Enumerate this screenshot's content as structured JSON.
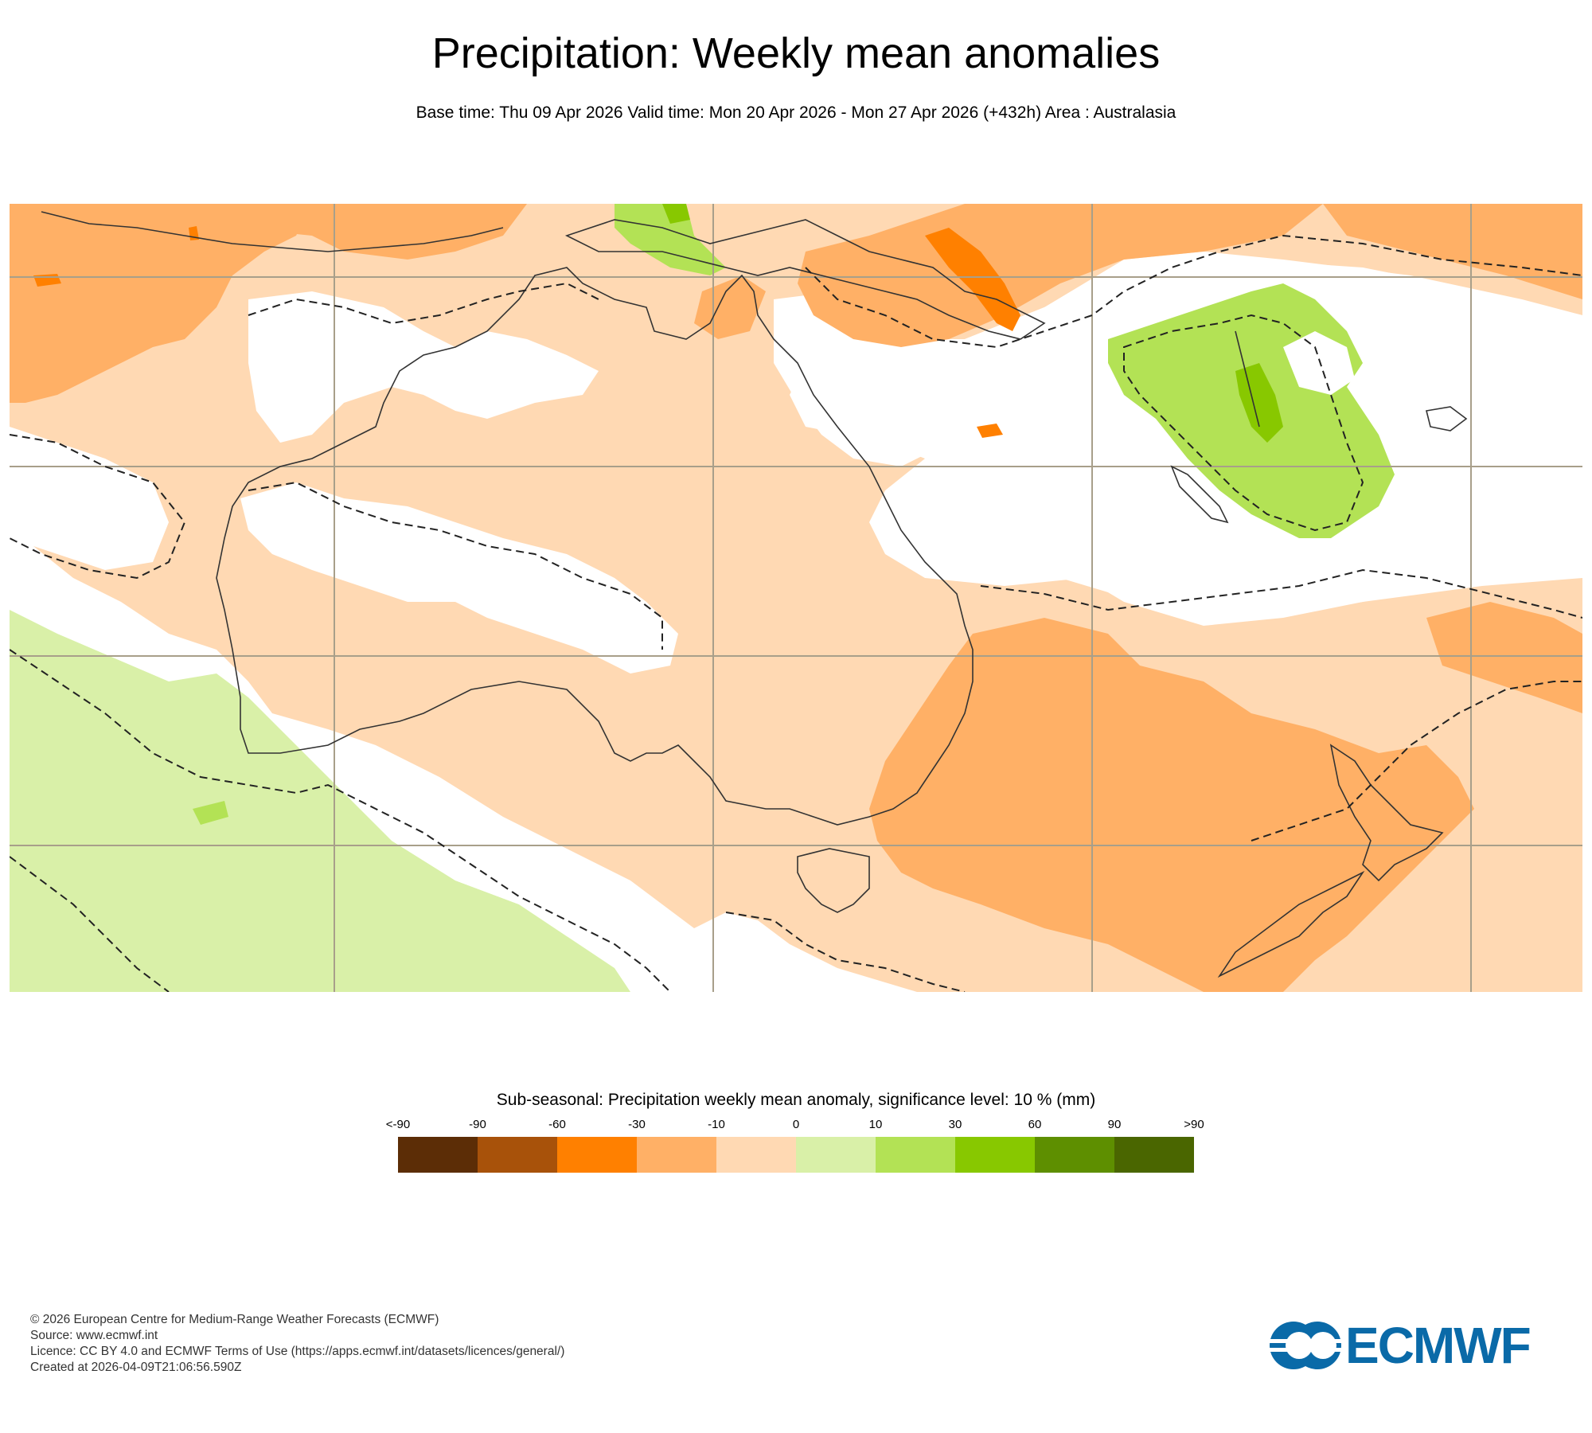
{
  "header": {
    "title": "Precipitation: Weekly mean anomalies",
    "subtitle": "Base time: Thu 09 Apr 2026 Valid time: Mon 20 Apr 2026 - Mon 27 Apr 2026 (+432h) Area : Australasia"
  },
  "legend": {
    "title": "Sub-seasonal: Precipitation weekly mean anomaly, significance level: 10 % (mm)",
    "ticks": [
      "<-90",
      "-90",
      "-60",
      "-30",
      "-10",
      "0",
      "10",
      "30",
      "60",
      "90",
      ">90"
    ],
    "colors": [
      "#5c2d06",
      "#a8520a",
      "#ff8000",
      "#ffb066",
      "#ffd9b3",
      "#d9f0a8",
      "#b3e255",
      "#88c800",
      "#5e8f00",
      "#4a6600"
    ]
  },
  "map": {
    "area": "Australasia",
    "palette": {
      "strong_dry": "#ff8000",
      "moderate_dry": "#ffb066",
      "weak_dry": "#ffd9b3",
      "weak_wet": "#d9f0a8",
      "moderate_wet": "#b3e255",
      "strong_wet": "#88c800"
    }
  },
  "footer": {
    "copyright": "© 2026 European Centre for Medium-Range Weather Forecasts (ECMWF)",
    "source": "Source: www.ecmwf.int",
    "licence": "Licence: CC BY 4.0 and ECMWF Terms of Use (https://apps.ecmwf.int/datasets/licences/general/)",
    "created": "Created at 2026-04-09T21:06:56.590Z"
  },
  "logo": {
    "text": "ECMWF",
    "color": "#0a6aa8"
  }
}
